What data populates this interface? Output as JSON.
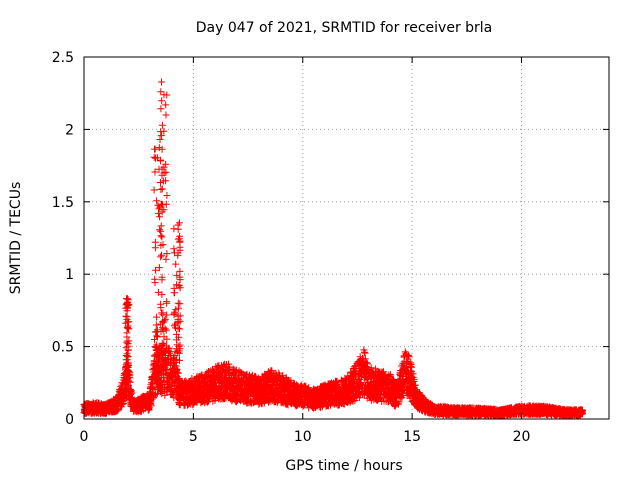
{
  "chart_data": {
    "type": "scatter",
    "title": "Day 047 of 2021, SRMTID for receiver brla",
    "xlabel": "GPS time / hours",
    "ylabel": "SRMTID / TECUs",
    "xlim": [
      0,
      24
    ],
    "ylim": [
      0,
      2.5
    ],
    "xticks": [
      0,
      5,
      10,
      15,
      20
    ],
    "xtick_labels": [
      "0",
      "5",
      "10",
      "15",
      "20"
    ],
    "yticks": [
      0,
      0.5,
      1,
      1.5,
      2,
      2.5
    ],
    "ytick_labels": [
      "0",
      "0.5",
      "1",
      "1.5",
      "2",
      "2.5"
    ],
    "grid": true,
    "marker": "+",
    "color": "#ff0000",
    "series": [
      {
        "name": "SRMTID",
        "profile_x": [
          0,
          0.5,
          1.0,
          1.5,
          1.8,
          2.0,
          2.2,
          2.4,
          3.0,
          3.3,
          3.5,
          3.6,
          3.7,
          3.8,
          4.0,
          4.2,
          4.4,
          4.6,
          5.0,
          5.5,
          6.0,
          6.5,
          7.0,
          7.5,
          8.0,
          8.5,
          9.0,
          9.5,
          10.0,
          10.5,
          11.0,
          11.5,
          12.0,
          12.5,
          12.8,
          13.0,
          13.5,
          14.0,
          14.3,
          14.7,
          14.9,
          15.2,
          15.6,
          16.0,
          17.0,
          18.0,
          19.0,
          20.0,
          21.0,
          21.5,
          22.0,
          22.8
        ],
        "profile_y": [
          0.08,
          0.09,
          0.08,
          0.12,
          0.22,
          0.35,
          0.12,
          0.1,
          0.14,
          0.4,
          0.38,
          0.4,
          0.35,
          0.4,
          0.35,
          0.3,
          0.2,
          0.2,
          0.22,
          0.24,
          0.28,
          0.3,
          0.26,
          0.24,
          0.22,
          0.26,
          0.24,
          0.2,
          0.18,
          0.16,
          0.18,
          0.2,
          0.22,
          0.3,
          0.38,
          0.28,
          0.26,
          0.24,
          0.18,
          0.38,
          0.32,
          0.16,
          0.1,
          0.07,
          0.06,
          0.06,
          0.05,
          0.07,
          0.07,
          0.06,
          0.05,
          0.05
        ],
        "spikes": [
          {
            "x": [
              1.9,
              2.05
            ],
            "y": [
              0.25,
              0.85
            ]
          },
          {
            "x": [
              3.2,
              3.55
            ],
            "y": [
              0.3,
              1.95
            ]
          },
          {
            "x": [
              3.5,
              3.8
            ],
            "y": [
              0.5,
              2.35
            ]
          },
          {
            "x": [
              4.1,
              4.4
            ],
            "y": [
              0.4,
              1.43
            ]
          }
        ]
      }
    ]
  }
}
